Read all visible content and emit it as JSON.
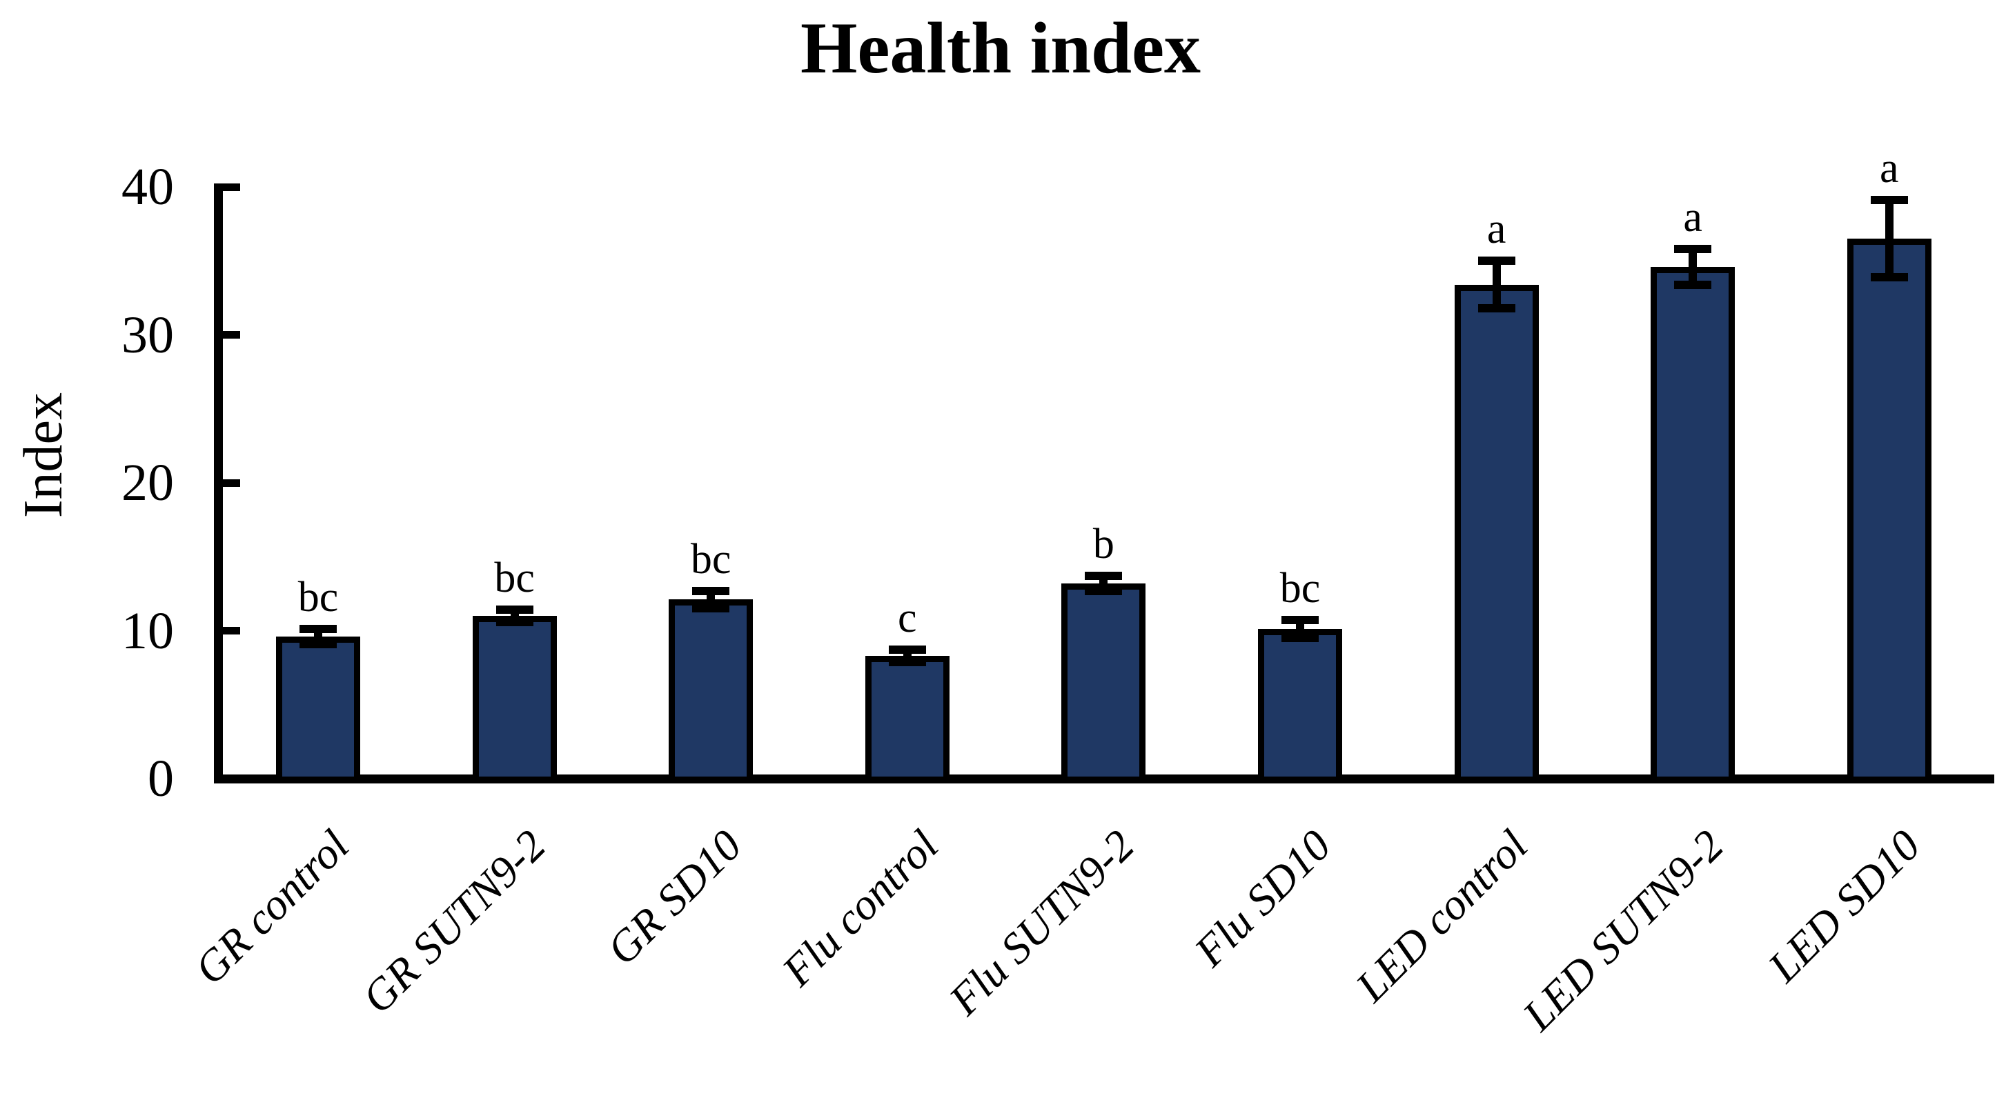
{
  "chart_data": {
    "type": "bar",
    "title": "Health index",
    "xlabel": "",
    "ylabel": "Index",
    "ylim": [
      0,
      40
    ],
    "yticks": [
      0,
      10,
      20,
      30,
      40
    ],
    "grid": false,
    "legend_position": "none",
    "bar_color": "#1f3864",
    "bar_border_color": "#000000",
    "error_bar_color": "#000000",
    "categories": [
      "GR control",
      "GR SUTN9-2",
      "GR SD10",
      "Flu control",
      "Flu SUTN9-2",
      "Flu SD10",
      "LED control",
      "LED SUTN9-2",
      "LED SD10"
    ],
    "values": [
      9.6,
      11.0,
      12.1,
      8.3,
      13.2,
      10.1,
      33.4,
      34.6,
      36.5
    ],
    "errors": [
      0.5,
      0.4,
      0.6,
      0.4,
      0.5,
      0.6,
      1.6,
      1.2,
      2.6
    ],
    "sig_letters": [
      "bc",
      "bc",
      "bc",
      "c",
      "b",
      "bc",
      "a",
      "a",
      "a"
    ]
  }
}
